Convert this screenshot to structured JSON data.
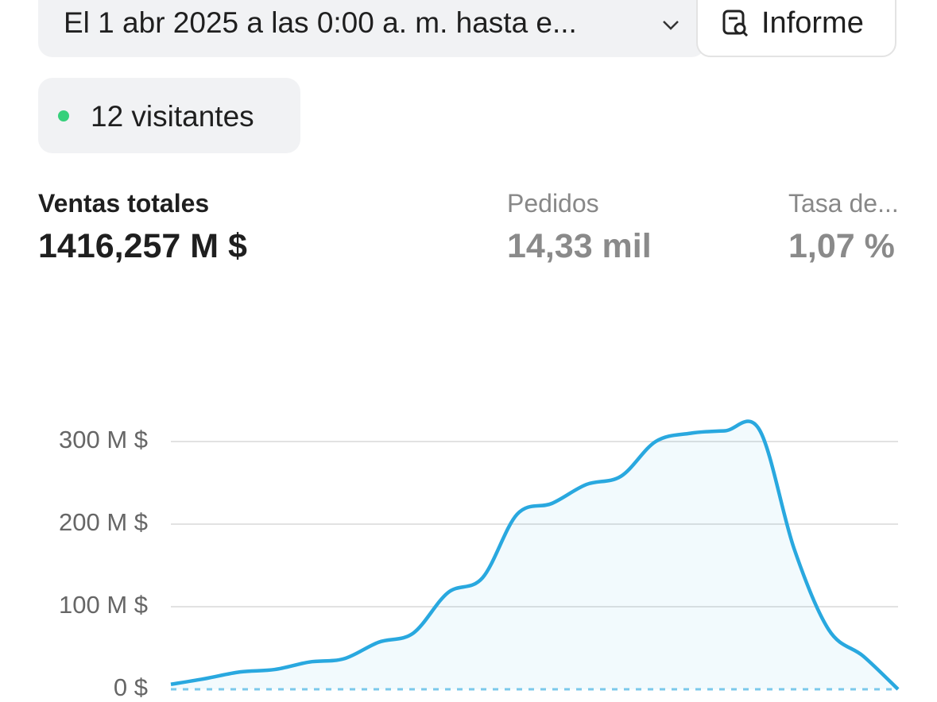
{
  "header": {
    "date_range": "El 1 abr 2025 a las 0:00 a. m. hasta e...",
    "report_button": "Informe"
  },
  "visitors": {
    "label": "12 visitantes"
  },
  "metrics": [
    {
      "label": "Ventas totales",
      "value": "1416,257 M $"
    },
    {
      "label": "Pedidos",
      "value": "14,33 mil"
    },
    {
      "label": "Tasa de...",
      "value": "1,07 %"
    }
  ],
  "chart_data": {
    "type": "area",
    "categories": [
      null,
      null,
      null,
      null,
      null,
      null,
      null,
      null,
      null,
      null,
      null,
      null,
      null,
      null,
      null,
      null,
      null,
      null,
      null,
      null,
      null,
      null
    ],
    "values": [
      6,
      13,
      21,
      24,
      33,
      37,
      57,
      68,
      117,
      135,
      212,
      225,
      248,
      258,
      300,
      310,
      313,
      314,
      170,
      72,
      40,
      0
    ],
    "color": "#29a8df",
    "ylim": [
      0,
      300
    ],
    "yticks": [
      {
        "value": 0,
        "label": "0 $"
      },
      {
        "value": 100,
        "label": "100 M $"
      },
      {
        "value": 200,
        "label": "200 M $"
      },
      {
        "value": 300,
        "label": "300 M $"
      }
    ],
    "grid": true
  }
}
